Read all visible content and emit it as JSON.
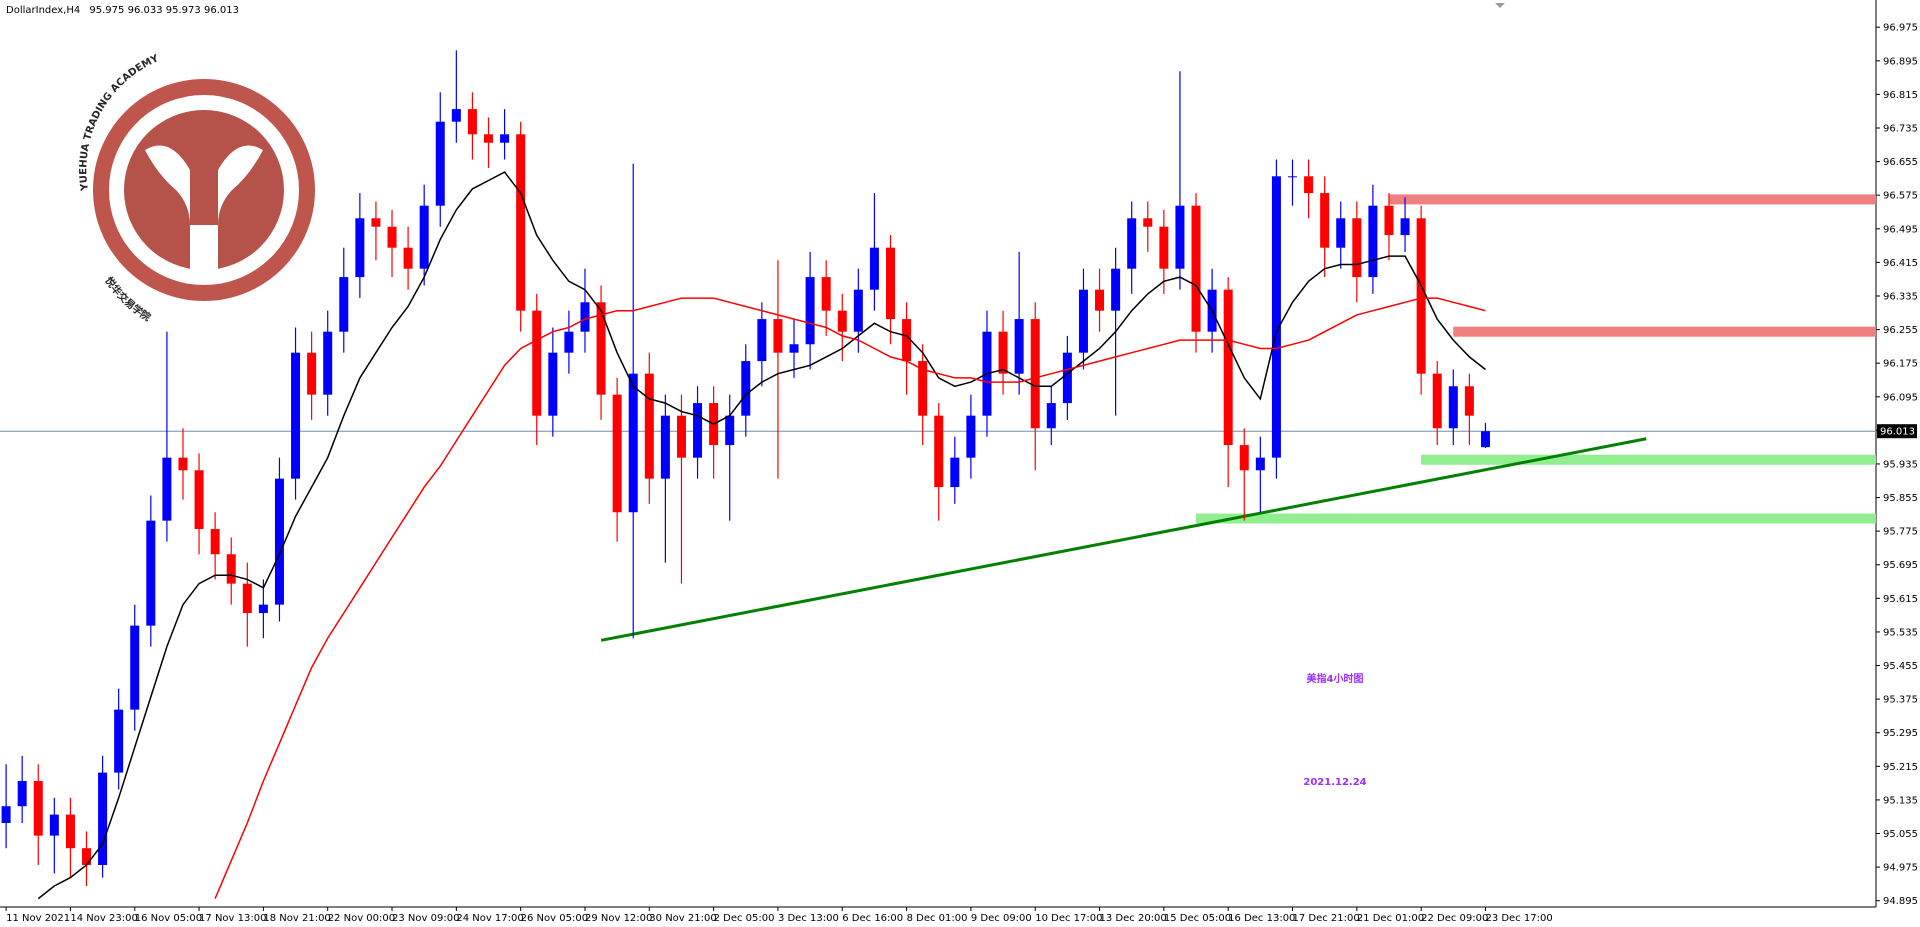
{
  "chart_data": {
    "type": "candlestick",
    "symbol": "DollarIndex,H4",
    "categories": [
      "11 Nov 2021",
      null,
      null,
      null,
      "14 Nov 23:00",
      null,
      null,
      null,
      "16 Nov 05:00",
      null,
      null,
      null,
      "17 Nov 13:00",
      null,
      null,
      null,
      "18 Nov 21:00",
      null,
      null,
      null,
      "22 Nov 00:00",
      null,
      null,
      null,
      "23 Nov 09:00",
      null,
      null,
      null,
      "24 Nov 17:00",
      null,
      null,
      null,
      "26 Nov 05:00",
      null,
      null,
      null,
      "29 Nov 12:00",
      null,
      null,
      null,
      "30 Nov 21:00",
      null,
      null,
      null,
      "2 Dec 05:00",
      null,
      null,
      null,
      "3 Dec 13:00",
      null,
      null,
      null,
      "6 Dec 16:00",
      null,
      null,
      null,
      "8 Dec 01:00",
      null,
      null,
      null,
      "9 Dec 09:00",
      null,
      null,
      null,
      "10 Dec 17:00",
      null,
      null,
      null,
      "13 Dec 20:00",
      null,
      null,
      null,
      "15 Dec 05:00",
      null,
      null,
      null,
      "16 Dec 13:00",
      null,
      null,
      null,
      "17 Dec 21:00",
      null,
      null,
      null,
      "21 Dec 01:00",
      null,
      null,
      null,
      "22 Dec 09:00",
      null,
      null,
      null,
      "23 Dec 17:00"
    ],
    "ohlc": {
      "up_color": "#0000ff",
      "down_color": "#ff0000",
      "open": [
        95.08,
        95.12,
        95.18,
        95.05,
        95.1,
        95.02,
        94.98,
        95.2,
        95.35,
        95.55,
        95.8,
        95.95,
        95.92,
        95.78,
        95.72,
        95.65,
        95.58,
        95.6,
        95.9,
        96.2,
        96.1,
        96.25,
        96.38,
        96.52,
        96.5,
        96.45,
        96.4,
        96.55,
        96.75,
        96.78,
        96.72,
        96.7,
        96.72,
        96.3,
        96.05,
        96.2,
        96.25,
        96.32,
        96.1,
        95.82,
        96.15,
        95.9,
        96.05,
        95.95,
        96.08,
        95.98,
        96.05,
        96.18,
        96.28,
        96.2,
        96.22,
        96.38,
        96.3,
        96.25,
        96.35,
        96.45,
        96.28,
        96.18,
        96.05,
        95.88,
        95.95,
        96.05,
        96.25,
        96.15,
        96.28,
        96.02,
        96.08,
        96.2,
        96.35,
        96.3,
        96.4,
        96.52,
        96.5,
        96.4,
        96.55,
        96.25,
        96.35,
        95.98,
        95.92,
        95.95,
        96.62,
        96.62,
        96.58,
        96.45,
        96.52,
        96.38,
        96.55,
        96.48,
        96.52,
        96.15,
        96.02,
        96.12,
        95.975
      ],
      "high": [
        95.22,
        95.24,
        95.22,
        95.14,
        95.14,
        95.06,
        95.24,
        95.4,
        95.6,
        95.86,
        96.25,
        96.02,
        95.96,
        95.82,
        95.76,
        95.7,
        95.66,
        95.95,
        96.26,
        96.25,
        96.3,
        96.45,
        96.58,
        96.56,
        96.54,
        96.5,
        96.6,
        96.82,
        96.92,
        96.82,
        96.76,
        96.78,
        96.75,
        96.34,
        96.26,
        96.3,
        96.4,
        96.36,
        96.14,
        96.65,
        96.2,
        96.1,
        96.1,
        96.12,
        96.12,
        96.1,
        96.22,
        96.32,
        96.42,
        96.28,
        96.44,
        96.42,
        96.34,
        96.4,
        96.58,
        96.48,
        96.32,
        96.22,
        96.08,
        96.0,
        96.1,
        96.3,
        96.3,
        96.44,
        96.32,
        96.12,
        96.24,
        96.4,
        96.4,
        96.45,
        96.56,
        96.56,
        96.54,
        96.87,
        96.58,
        96.4,
        96.38,
        96.02,
        96.0,
        96.66,
        96.66,
        96.66,
        96.62,
        96.56,
        96.56,
        96.6,
        96.58,
        96.57,
        96.55,
        96.18,
        96.16,
        96.15,
        96.033
      ],
      "low": [
        95.02,
        95.08,
        94.98,
        94.96,
        94.95,
        94.93,
        94.95,
        95.16,
        95.3,
        95.5,
        95.75,
        95.85,
        95.72,
        95.66,
        95.6,
        95.5,
        95.52,
        95.56,
        95.85,
        96.04,
        96.05,
        96.2,
        96.33,
        96.42,
        96.38,
        96.35,
        96.36,
        96.5,
        96.7,
        96.66,
        96.64,
        96.66,
        96.25,
        95.98,
        96.0,
        96.15,
        96.2,
        96.04,
        95.75,
        95.52,
        95.84,
        95.7,
        95.65,
        95.9,
        95.9,
        95.8,
        96.0,
        96.12,
        95.9,
        96.14,
        96.16,
        96.24,
        96.18,
        96.2,
        96.3,
        96.22,
        96.1,
        95.98,
        95.8,
        95.84,
        95.9,
        96.0,
        96.1,
        96.1,
        95.92,
        95.98,
        96.04,
        96.16,
        96.25,
        96.05,
        96.34,
        96.44,
        96.34,
        96.35,
        96.2,
        96.2,
        95.88,
        95.8,
        95.82,
        95.9,
        96.55,
        96.52,
        96.38,
        96.4,
        96.32,
        96.34,
        96.42,
        96.44,
        96.1,
        95.98,
        95.98,
        95.98,
        95.973
      ],
      "close": [
        95.12,
        95.18,
        95.05,
        95.1,
        95.02,
        94.98,
        95.2,
        95.35,
        95.55,
        95.8,
        95.95,
        95.92,
        95.78,
        95.72,
        95.65,
        95.58,
        95.6,
        95.9,
        96.2,
        96.1,
        96.25,
        96.38,
        96.52,
        96.5,
        96.45,
        96.4,
        96.55,
        96.75,
        96.78,
        96.72,
        96.7,
        96.72,
        96.3,
        96.05,
        96.2,
        96.25,
        96.32,
        96.1,
        95.82,
        96.15,
        95.9,
        96.05,
        95.95,
        96.08,
        95.98,
        96.05,
        96.18,
        96.28,
        96.2,
        96.22,
        96.38,
        96.3,
        96.25,
        96.35,
        96.45,
        96.28,
        96.18,
        96.05,
        95.88,
        95.95,
        96.05,
        96.25,
        96.15,
        96.28,
        96.02,
        96.08,
        96.2,
        96.35,
        96.3,
        96.4,
        96.52,
        96.5,
        96.4,
        96.55,
        96.25,
        96.35,
        95.98,
        95.92,
        95.95,
        96.62,
        96.62,
        96.58,
        96.45,
        96.52,
        96.38,
        96.55,
        96.48,
        96.52,
        96.15,
        96.02,
        96.12,
        96.05,
        96.013
      ]
    },
    "lines": [
      {
        "color": "#000000",
        "values": [
          null,
          null,
          94.9,
          94.93,
          94.95,
          94.98,
          95.03,
          95.14,
          95.26,
          95.38,
          95.5,
          95.6,
          95.65,
          95.67,
          95.67,
          95.66,
          95.64,
          95.72,
          95.81,
          95.88,
          95.95,
          96.05,
          96.14,
          96.2,
          96.26,
          96.31,
          96.38,
          96.47,
          96.54,
          96.59,
          96.61,
          96.63,
          96.58,
          96.48,
          96.42,
          96.37,
          96.35,
          96.3,
          96.2,
          96.12,
          96.09,
          96.08,
          96.06,
          96.05,
          96.03,
          96.05,
          96.1,
          96.13,
          96.15,
          96.16,
          96.17,
          96.19,
          96.21,
          96.24,
          96.27,
          96.25,
          96.24,
          96.2,
          96.14,
          96.12,
          96.13,
          96.15,
          96.16,
          96.14,
          96.12,
          96.12,
          96.15,
          96.18,
          96.21,
          96.25,
          96.3,
          96.34,
          96.37,
          96.38,
          96.36,
          96.3,
          96.22,
          96.14,
          96.09,
          96.25,
          96.32,
          96.37,
          96.4,
          96.41,
          96.41,
          96.42,
          96.43,
          96.43,
          96.36,
          96.28,
          96.23,
          96.19,
          96.16
        ]
      },
      {
        "color": "#ff0000",
        "values": [
          null,
          null,
          null,
          null,
          null,
          null,
          null,
          null,
          null,
          null,
          null,
          null,
          null,
          94.9,
          94.99,
          95.08,
          95.18,
          95.27,
          95.36,
          95.45,
          95.52,
          95.58,
          95.64,
          95.7,
          95.76,
          95.82,
          95.88,
          95.93,
          95.99,
          96.05,
          96.11,
          96.17,
          96.21,
          96.23,
          96.25,
          96.26,
          96.28,
          96.29,
          96.3,
          96.3,
          96.31,
          96.32,
          96.33,
          96.33,
          96.33,
          96.32,
          96.31,
          96.3,
          96.29,
          96.28,
          96.27,
          96.26,
          96.24,
          96.23,
          96.21,
          96.19,
          96.18,
          96.16,
          96.15,
          96.14,
          96.14,
          96.13,
          96.13,
          96.13,
          96.14,
          96.15,
          96.16,
          96.17,
          96.18,
          96.19,
          96.2,
          96.21,
          96.22,
          96.23,
          96.23,
          96.23,
          96.23,
          96.22,
          96.21,
          96.21,
          96.22,
          96.23,
          96.25,
          96.27,
          96.29,
          96.3,
          96.31,
          96.32,
          96.33,
          96.33,
          96.32,
          96.31,
          96.3
        ]
      }
    ],
    "levels": [
      {
        "value": 96.565,
        "start": 86,
        "color": "#f08080"
      },
      {
        "value": 96.25,
        "start": 90,
        "color": "#f08080"
      },
      {
        "value": 95.945,
        "start": 88,
        "color": "#90ee90"
      },
      {
        "value": 95.805,
        "start": 74,
        "color": "#90ee90"
      }
    ],
    "trendline": {
      "x": [
        37,
        102
      ],
      "values": [
        95.515,
        95.995
      ],
      "color": "#008000"
    },
    "current_price": 96.013,
    "ylim": [
      94.88,
      97.016
    ],
    "yticks": [
      94.895,
      94.975,
      95.055,
      95.135,
      95.215,
      95.295,
      95.375,
      95.455,
      95.535,
      95.615,
      95.695,
      95.775,
      95.855,
      95.935,
      96.015,
      96.095,
      96.175,
      96.255,
      96.335,
      96.415,
      96.495,
      96.575,
      96.655,
      96.735,
      96.815,
      96.895,
      96.975
    ],
    "watermark": {
      "title": "YUEHUA TRADING ACADEMY",
      "subtitle": "悦华交易学院"
    },
    "annotations": [
      "美指4小时图",
      "2021.12.24"
    ]
  }
}
